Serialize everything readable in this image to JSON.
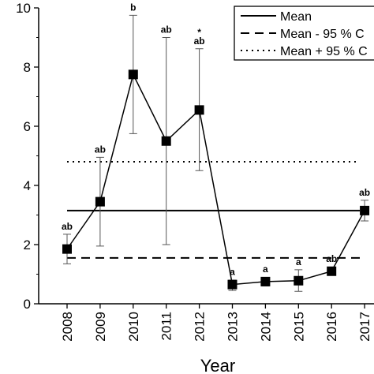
{
  "chart_data": {
    "type": "line",
    "xlabel": "Year",
    "ylabel": "",
    "ylim": [
      0,
      10
    ],
    "yticks": [
      "0",
      "2",
      "4",
      "6",
      "8",
      "10"
    ],
    "categories": [
      "2008",
      "2009",
      "2010",
      "2011",
      "2012",
      "2013",
      "2014",
      "2015",
      "2016",
      "2017"
    ],
    "series": [
      {
        "values": [
          1.85,
          3.45,
          7.75,
          5.5,
          6.55,
          0.65,
          0.75,
          0.78,
          1.1,
          3.15
        ],
        "error_low": [
          1.35,
          1.95,
          5.75,
          2.0,
          4.5,
          0.45,
          0.6,
          0.42,
          1.0,
          2.8
        ],
        "error_high": [
          2.35,
          4.95,
          9.75,
          9.0,
          8.62,
          0.8,
          0.88,
          1.15,
          1.2,
          3.5
        ],
        "labels": [
          "ab",
          "ab",
          "b",
          "ab",
          "ab",
          "a",
          "a",
          "a",
          "ab",
          "ab"
        ],
        "stars": [
          "",
          "",
          "*",
          "",
          "*",
          "",
          "",
          "",
          "",
          ""
        ]
      }
    ],
    "reference_lines": [
      {
        "name": "Mean",
        "value": 3.15,
        "style": "solid"
      },
      {
        "name": "Mean - 95 % C",
        "value": 1.55,
        "style": "dashed"
      },
      {
        "name": "Mean + 95 % C",
        "value": 4.8,
        "style": "dotted"
      }
    ],
    "legend_position": "top-right",
    "grid": false
  }
}
